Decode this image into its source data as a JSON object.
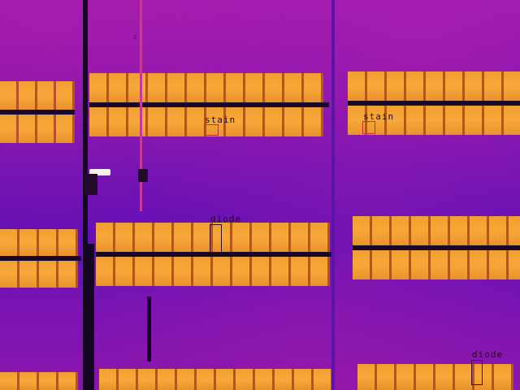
{
  "image": {
    "kind": "thermal infrared aerial view of solar panel rows",
    "palette": "iron / magenta-orange false color"
  },
  "colors": {
    "background_warm": "#9a18b2",
    "background_cool": "#6210b6",
    "panel_hot": "#f7a83a",
    "panel_edge": "#b8502c",
    "frame_dark": "#150622",
    "annotation_text": "#1c0a14",
    "stain_box": "#c0302a",
    "diode_box": "#3a1010"
  },
  "annotations": [
    {
      "label": "stain"
    },
    {
      "label": "stain"
    },
    {
      "label": "diode"
    },
    {
      "label": "diode"
    }
  ],
  "marker_text": "o"
}
